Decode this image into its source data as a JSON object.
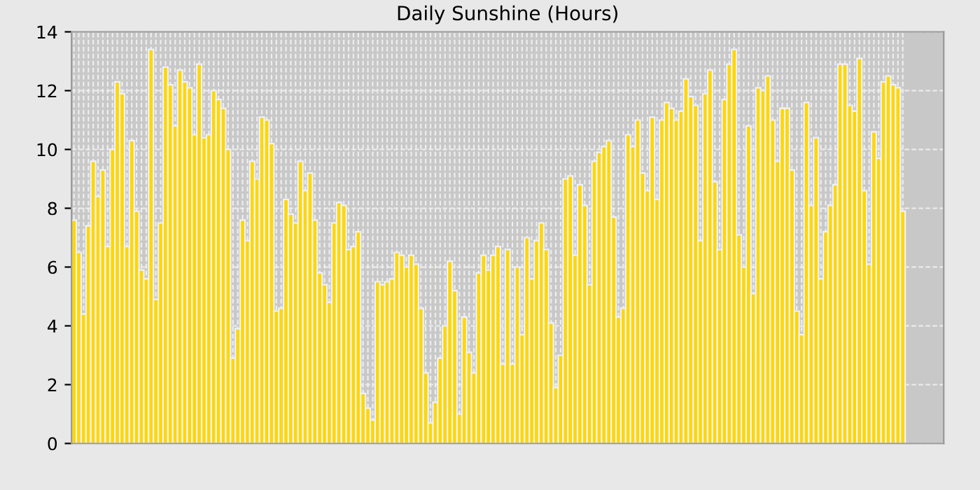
{
  "chart_data": {
    "type": "bar",
    "title": "Daily Sunshine (Hours)",
    "categories": [
      null,
      null,
      null,
      null,
      null,
      null,
      null,
      null,
      null,
      null,
      null,
      null,
      null,
      null,
      null,
      null,
      null,
      null,
      null,
      null,
      null,
      null,
      null,
      null,
      null,
      null,
      null,
      null,
      null,
      null,
      null,
      null,
      null,
      null,
      null,
      null,
      null,
      null,
      null,
      null,
      null,
      null,
      null,
      null,
      null,
      null,
      null,
      null,
      null,
      null,
      null,
      null,
      null,
      null,
      null,
      null,
      null,
      null,
      null,
      null,
      null,
      null,
      null,
      null,
      null,
      null,
      null,
      null,
      null,
      null,
      null,
      null,
      null,
      null,
      null,
      null,
      null,
      null,
      null,
      null,
      null,
      null,
      null,
      null,
      null,
      null,
      null,
      null,
      null,
      null,
      null,
      null,
      null,
      null,
      null,
      null,
      null,
      null,
      null,
      null,
      null,
      null,
      null,
      null,
      null,
      null,
      null,
      null,
      null,
      null,
      null,
      null,
      null,
      null,
      null,
      null,
      null,
      null,
      null,
      null,
      null,
      null,
      null,
      null,
      null,
      null,
      null,
      null,
      null,
      null,
      null,
      null,
      null,
      null,
      null,
      null,
      null,
      null,
      null,
      null,
      null,
      null,
      null,
      null,
      null,
      null,
      null,
      null,
      null,
      null,
      null,
      null,
      null,
      null,
      null,
      null,
      null,
      null,
      null,
      null,
      null,
      null,
      null,
      null,
      null,
      null,
      null,
      null,
      null,
      null,
      null,
      null,
      null
    ],
    "values": [
      7.6,
      6.5,
      4.4,
      7.4,
      9.6,
      8.4,
      9.3,
      6.7,
      10.0,
      12.3,
      11.9,
      6.7,
      10.3,
      7.9,
      5.9,
      5.6,
      13.4,
      4.9,
      7.5,
      12.8,
      12.2,
      10.8,
      12.7,
      12.3,
      12.1,
      10.5,
      12.9,
      10.4,
      10.5,
      12.0,
      11.7,
      11.4,
      10.0,
      2.9,
      3.9,
      7.6,
      6.9,
      9.6,
      9.0,
      11.1,
      11.0,
      10.2,
      4.5,
      4.6,
      8.3,
      7.8,
      7.5,
      9.6,
      8.6,
      9.2,
      7.6,
      5.8,
      5.4,
      4.8,
      7.5,
      8.2,
      8.1,
      6.6,
      6.7,
      7.2,
      1.7,
      1.2,
      0.8,
      5.5,
      5.4,
      5.5,
      5.6,
      6.5,
      6.4,
      6.0,
      6.4,
      6.1,
      4.6,
      2.4,
      0.7,
      1.4,
      2.9,
      4.0,
      6.2,
      5.2,
      1.0,
      4.3,
      3.1,
      2.4,
      5.8,
      6.4,
      5.9,
      6.4,
      6.7,
      2.7,
      6.6,
      2.7,
      6.0,
      3.7,
      7.0,
      5.6,
      6.9,
      7.5,
      6.6,
      4.1,
      1.9,
      3.0,
      9.0,
      9.1,
      6.4,
      8.8,
      8.1,
      5.4,
      9.6,
      9.9,
      10.1,
      10.3,
      7.7,
      4.3,
      4.6,
      10.5,
      10.1,
      11.0,
      9.2,
      8.6,
      11.1,
      8.3,
      11.0,
      11.6,
      11.4,
      11.0,
      11.3,
      12.4,
      11.8,
      11.5,
      6.9,
      11.9,
      12.7,
      8.9,
      6.6,
      11.7,
      12.9,
      13.4,
      7.1,
      6.0,
      10.8,
      5.1,
      12.1,
      12.0,
      12.5,
      11.0,
      9.6,
      11.4,
      11.4,
      9.3,
      4.5,
      3.7,
      11.6,
      8.1,
      10.4,
      5.6,
      7.2,
      8.1,
      8.8,
      12.9,
      12.9,
      11.5,
      11.3,
      13.1,
      8.6,
      6.1,
      10.6,
      9.7,
      12.3,
      12.5,
      12.2,
      12.1,
      7.9
    ],
    "color": "#ffd700",
    "ylim": [
      0,
      14
    ],
    "yticks": [
      0,
      2,
      4,
      6,
      8,
      10,
      12,
      14
    ],
    "grid": true,
    "tick_labels": "y"
  }
}
